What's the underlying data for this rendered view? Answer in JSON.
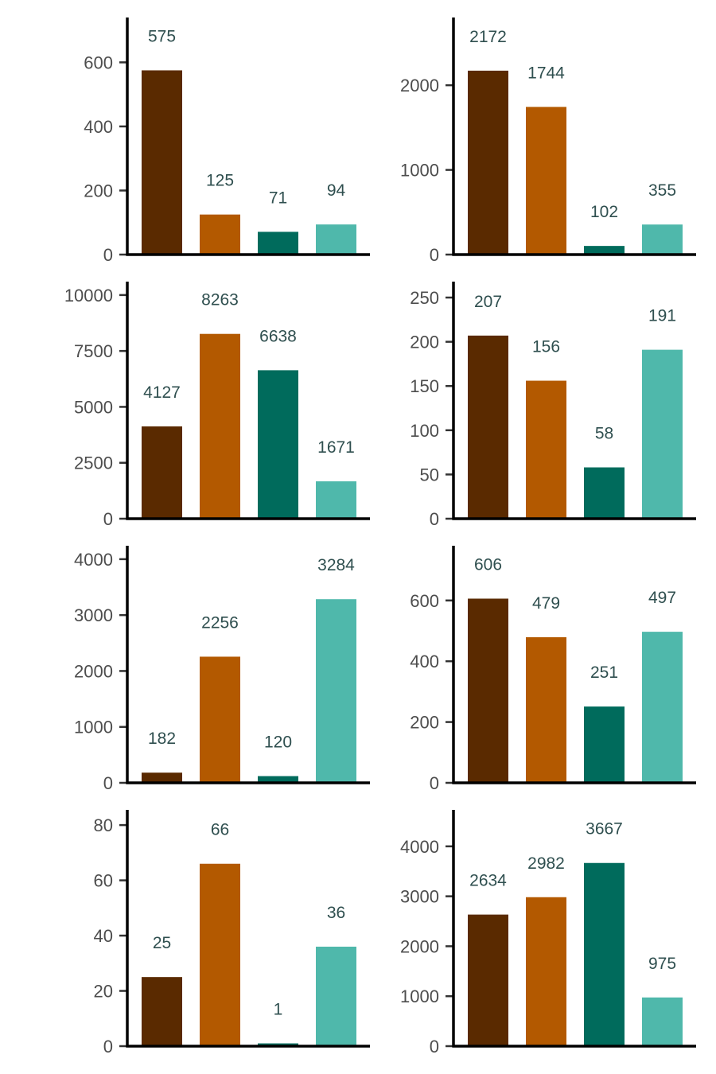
{
  "colors": {
    "bar_colors": [
      "#5a2a00",
      "#b35900",
      "#006b5c",
      "#4fb8ab"
    ],
    "background": "#ffffff",
    "tick_text": "#4d4d4d",
    "value_text": "#2f4f4f",
    "axis": "#000000"
  },
  "chart_data": [
    {
      "type": "bar",
      "values": [
        575,
        125,
        71,
        94
      ],
      "ylim": [
        0,
        740
      ],
      "yticks": [
        0,
        200,
        400,
        600
      ],
      "ytick_labels": [
        "0",
        "200",
        "400",
        "600"
      ]
    },
    {
      "type": "bar",
      "values": [
        2172,
        1744,
        102,
        355
      ],
      "ylim": [
        0,
        2800
      ],
      "yticks": [
        0,
        1000,
        2000
      ],
      "ytick_labels": [
        "0",
        "1000",
        "2000"
      ]
    },
    {
      "type": "bar",
      "values": [
        4127,
        8263,
        6638,
        1671
      ],
      "ylim": [
        0,
        10600
      ],
      "yticks": [
        0,
        2500,
        5000,
        7500,
        10000
      ],
      "ytick_labels": [
        "0",
        "2500",
        "5000",
        "7500",
        "10000"
      ]
    },
    {
      "type": "bar",
      "values": [
        207,
        156,
        58,
        191
      ],
      "ylim": [
        0,
        268
      ],
      "yticks": [
        0,
        50,
        100,
        150,
        200,
        250
      ],
      "ytick_labels": [
        "0",
        "50",
        "100",
        "150",
        "200",
        "250"
      ]
    },
    {
      "type": "bar",
      "values": [
        182,
        2256,
        120,
        3284
      ],
      "ylim": [
        0,
        4240
      ],
      "yticks": [
        0,
        1000,
        2000,
        3000,
        4000
      ],
      "ytick_labels": [
        "0",
        "1000",
        "2000",
        "3000",
        "4000"
      ]
    },
    {
      "type": "bar",
      "values": [
        606,
        479,
        251,
        497
      ],
      "ylim": [
        0,
        780
      ],
      "yticks": [
        0,
        200,
        400,
        600
      ],
      "ytick_labels": [
        "0",
        "200",
        "400",
        "600"
      ]
    },
    {
      "type": "bar",
      "values": [
        25,
        66,
        1,
        36
      ],
      "ylim": [
        0,
        85.5
      ],
      "yticks": [
        0,
        20,
        40,
        60,
        80
      ],
      "ytick_labels": [
        "0",
        "20",
        "40",
        "60",
        "80"
      ]
    },
    {
      "type": "bar",
      "values": [
        2634,
        2982,
        3667,
        975
      ],
      "ylim": [
        0,
        4730
      ],
      "yticks": [
        0,
        1000,
        2000,
        3000,
        4000
      ],
      "ytick_labels": [
        "0",
        "1000",
        "2000",
        "3000",
        "4000"
      ]
    }
  ]
}
